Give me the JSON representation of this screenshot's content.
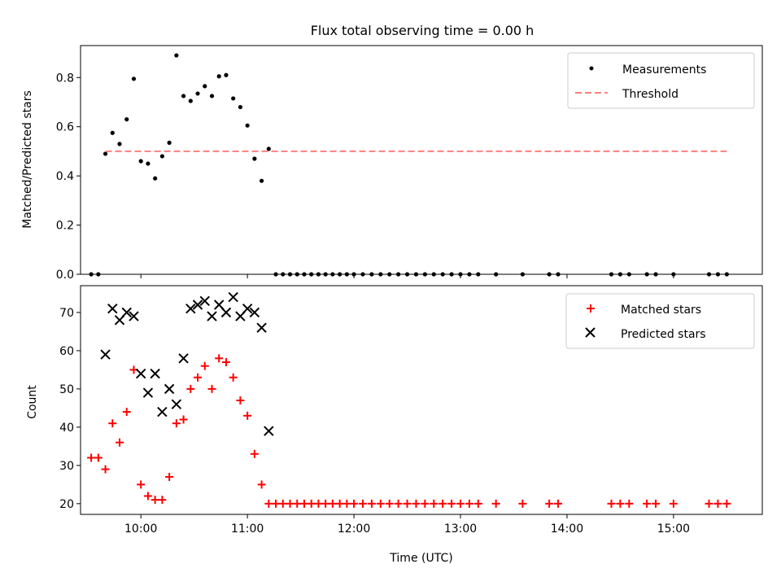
{
  "title": "Flux total observing time = 0.00 h",
  "colors": {
    "measurements": "#000000",
    "threshold": "#ff7f7f",
    "matched": "#ff0000",
    "predicted": "#000000"
  },
  "chart_data": [
    {
      "type": "scatter",
      "panel": "top",
      "title": "Flux total observing time = 0.00 h",
      "xlabel": "",
      "ylabel": "Matched/Predicted stars",
      "xlim": [
        "09:26",
        "15:50"
      ],
      "ylim": [
        0,
        0.93
      ],
      "yticks": [
        0.0,
        0.2,
        0.4,
        0.6,
        0.8
      ],
      "ytick_labels": [
        "0.0",
        "0.2",
        "0.4",
        "0.6",
        "0.8"
      ],
      "xticks": [
        "10:00",
        "11:00",
        "12:00",
        "13:00",
        "14:00",
        "15:00"
      ],
      "legend_position": "upper right",
      "grid": false,
      "series": [
        {
          "name": "Measurements",
          "marker": "dot",
          "x": [
            "09:32",
            "09:36",
            "09:40",
            "09:44",
            "09:48",
            "09:52",
            "09:56",
            "10:00",
            "10:04",
            "10:08",
            "10:12",
            "10:16",
            "10:20",
            "10:24",
            "10:28",
            "10:32",
            "10:36",
            "10:40",
            "10:44",
            "10:48",
            "10:52",
            "10:56",
            "11:00",
            "11:04",
            "11:08",
            "11:12",
            "11:16",
            "11:20",
            "11:24",
            "11:28",
            "11:32",
            "11:36",
            "11:40",
            "11:44",
            "11:48",
            "11:52",
            "11:56",
            "12:00",
            "12:05",
            "12:10",
            "12:15",
            "12:20",
            "12:25",
            "12:30",
            "12:35",
            "12:40",
            "12:45",
            "12:50",
            "12:55",
            "13:00",
            "13:05",
            "13:10",
            "13:20",
            "13:35",
            "13:50",
            "13:55",
            "14:25",
            "14:30",
            "14:35",
            "14:45",
            "14:50",
            "15:00",
            "15:20",
            "15:25",
            "15:30"
          ],
          "y": [
            0,
            0,
            0.49,
            0.575,
            0.53,
            0.63,
            0.795,
            0.46,
            0.45,
            0.39,
            0.48,
            0.535,
            0.89,
            0.725,
            0.705,
            0.735,
            0.765,
            0.725,
            0.805,
            0.81,
            0.715,
            0.68,
            0.605,
            0.47,
            0.38,
            0.51,
            0,
            0,
            0,
            0,
            0,
            0,
            0,
            0,
            0,
            0,
            0,
            0,
            0,
            0,
            0,
            0,
            0,
            0,
            0,
            0,
            0,
            0,
            0,
            0,
            0,
            0,
            0,
            0,
            0,
            0,
            0,
            0,
            0,
            0,
            0,
            0,
            0,
            0,
            0
          ]
        },
        {
          "name": "Threshold",
          "style": "dashed",
          "x": [
            "09:40",
            "15:30"
          ],
          "y": [
            0.5,
            0.5
          ]
        }
      ]
    },
    {
      "type": "scatter",
      "panel": "bottom",
      "xlabel": "Time (UTC)",
      "ylabel": "Count",
      "xlim": [
        "09:26",
        "15:50"
      ],
      "ylim": [
        17.2,
        77
      ],
      "yticks": [
        20,
        30,
        40,
        50,
        60,
        70
      ],
      "ytick_labels": [
        "20",
        "30",
        "40",
        "50",
        "60",
        "70"
      ],
      "xticks": [
        "10:00",
        "11:00",
        "12:00",
        "13:00",
        "14:00",
        "15:00"
      ],
      "legend_position": "upper right",
      "grid": false,
      "series": [
        {
          "name": "Matched stars",
          "marker": "plus",
          "x": [
            "09:32",
            "09:36",
            "09:40",
            "09:44",
            "09:48",
            "09:52",
            "09:56",
            "10:00",
            "10:04",
            "10:08",
            "10:12",
            "10:16",
            "10:20",
            "10:24",
            "10:28",
            "10:32",
            "10:36",
            "10:40",
            "10:44",
            "10:48",
            "10:52",
            "10:56",
            "11:00",
            "11:04",
            "11:08",
            "11:12",
            "11:16",
            "11:20",
            "11:24",
            "11:28",
            "11:32",
            "11:36",
            "11:40",
            "11:44",
            "11:48",
            "11:52",
            "11:56",
            "12:00",
            "12:05",
            "12:10",
            "12:15",
            "12:20",
            "12:25",
            "12:30",
            "12:35",
            "12:40",
            "12:45",
            "12:50",
            "12:55",
            "13:00",
            "13:05",
            "13:10",
            "13:20",
            "13:35",
            "13:50",
            "13:55",
            "14:25",
            "14:30",
            "14:35",
            "14:45",
            "14:50",
            "15:00",
            "15:20",
            "15:25",
            "15:30"
          ],
          "y": [
            32,
            32,
            29,
            41,
            36,
            44,
            55,
            25,
            22,
            21,
            21,
            27,
            41,
            42,
            50,
            53,
            56,
            50,
            58,
            57,
            53,
            47,
            43,
            33,
            25,
            20,
            20,
            20,
            20,
            20,
            20,
            20,
            20,
            20,
            20,
            20,
            20,
            20,
            20,
            20,
            20,
            20,
            20,
            20,
            20,
            20,
            20,
            20,
            20,
            20,
            20,
            20,
            20,
            20,
            20,
            20,
            20,
            20,
            20,
            20,
            20,
            20,
            20,
            20,
            20
          ]
        },
        {
          "name": "Predicted stars",
          "marker": "x",
          "x": [
            "09:40",
            "09:44",
            "09:48",
            "09:52",
            "09:56",
            "10:00",
            "10:04",
            "10:08",
            "10:12",
            "10:16",
            "10:20",
            "10:24",
            "10:28",
            "10:32",
            "10:36",
            "10:40",
            "10:44",
            "10:48",
            "10:52",
            "10:56",
            "11:00",
            "11:04",
            "11:08",
            "11:12"
          ],
          "y": [
            59,
            71,
            68,
            70,
            69,
            54,
            49,
            54,
            44,
            50,
            46,
            58,
            71,
            72,
            73,
            69,
            72,
            70,
            74,
            69,
            71,
            70,
            66,
            39
          ]
        }
      ]
    }
  ]
}
